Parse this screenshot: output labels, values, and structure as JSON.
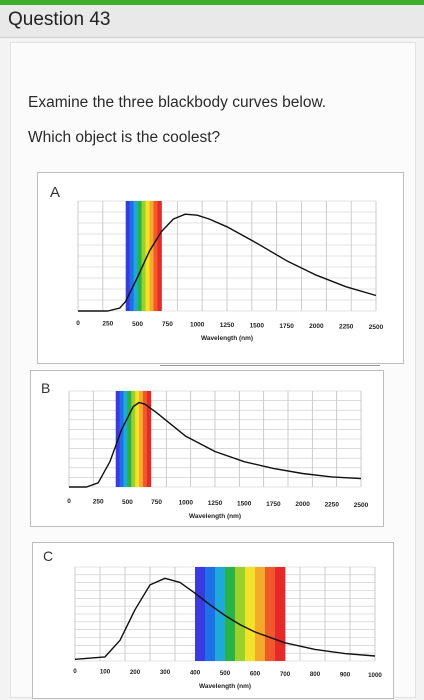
{
  "header": {
    "title": "Question 43",
    "accent_color": "#3fae2a"
  },
  "prompt": {
    "line1": "Examine the three blackbody curves below.",
    "line2": "Which object is the coolest?"
  },
  "charts": [
    {
      "label": "A",
      "xlabel": "Wavelength (nm)",
      "ticks": [
        "0",
        "250",
        "500",
        "750",
        "1000",
        "1250",
        "1500",
        "1750",
        "2000",
        "2250",
        "2500"
      ]
    },
    {
      "label": "B",
      "xlabel": "Wavelength (nm)",
      "ticks": [
        "0",
        "250",
        "500",
        "750",
        "1000",
        "1250",
        "1500",
        "1750",
        "2000",
        "2250",
        "2500"
      ]
    },
    {
      "label": "C",
      "xlabel": "Wavelength (nm)",
      "ticks": [
        "0",
        "100",
        "200",
        "300",
        "400",
        "500",
        "600",
        "700",
        "800",
        "900",
        "1000"
      ]
    }
  ],
  "chart_data": [
    {
      "type": "line",
      "title": "A",
      "xlabel": "Wavelength (nm)",
      "xlim": [
        0,
        2500
      ],
      "visible_band_nm": [
        400,
        700
      ],
      "series": [
        {
          "x": [
            0,
            250,
            350,
            400,
            500,
            600,
            700,
            800,
            900,
            1000,
            1100,
            1250,
            1500,
            1750,
            2000,
            2250,
            2500
          ],
          "y": [
            0,
            0,
            0.03,
            0.1,
            0.35,
            0.62,
            0.82,
            0.95,
            1.0,
            0.99,
            0.95,
            0.87,
            0.7,
            0.52,
            0.37,
            0.25,
            0.16
          ]
        }
      ]
    },
    {
      "type": "line",
      "title": "B",
      "xlabel": "Wavelength (nm)",
      "xlim": [
        0,
        2500
      ],
      "visible_band_nm": [
        400,
        700
      ],
      "series": [
        {
          "x": [
            0,
            150,
            250,
            350,
            450,
            550,
            600,
            650,
            750,
            1000,
            1250,
            1500,
            1750,
            2000,
            2250,
            2500
          ],
          "y": [
            0,
            0,
            0.05,
            0.3,
            0.68,
            0.95,
            1.0,
            0.98,
            0.88,
            0.6,
            0.42,
            0.3,
            0.22,
            0.16,
            0.12,
            0.1
          ]
        }
      ]
    },
    {
      "type": "line",
      "title": "C",
      "xlabel": "Wavelength (nm)",
      "xlim": [
        0,
        1000
      ],
      "visible_band_nm": [
        400,
        700
      ],
      "series": [
        {
          "x": [
            0,
            100,
            150,
            200,
            250,
            300,
            350,
            400,
            450,
            500,
            550,
            600,
            700,
            800,
            900,
            1000
          ],
          "y": [
            0.02,
            0.05,
            0.25,
            0.62,
            0.92,
            1.0,
            0.95,
            0.82,
            0.68,
            0.55,
            0.44,
            0.35,
            0.22,
            0.14,
            0.09,
            0.06
          ]
        }
      ]
    }
  ]
}
